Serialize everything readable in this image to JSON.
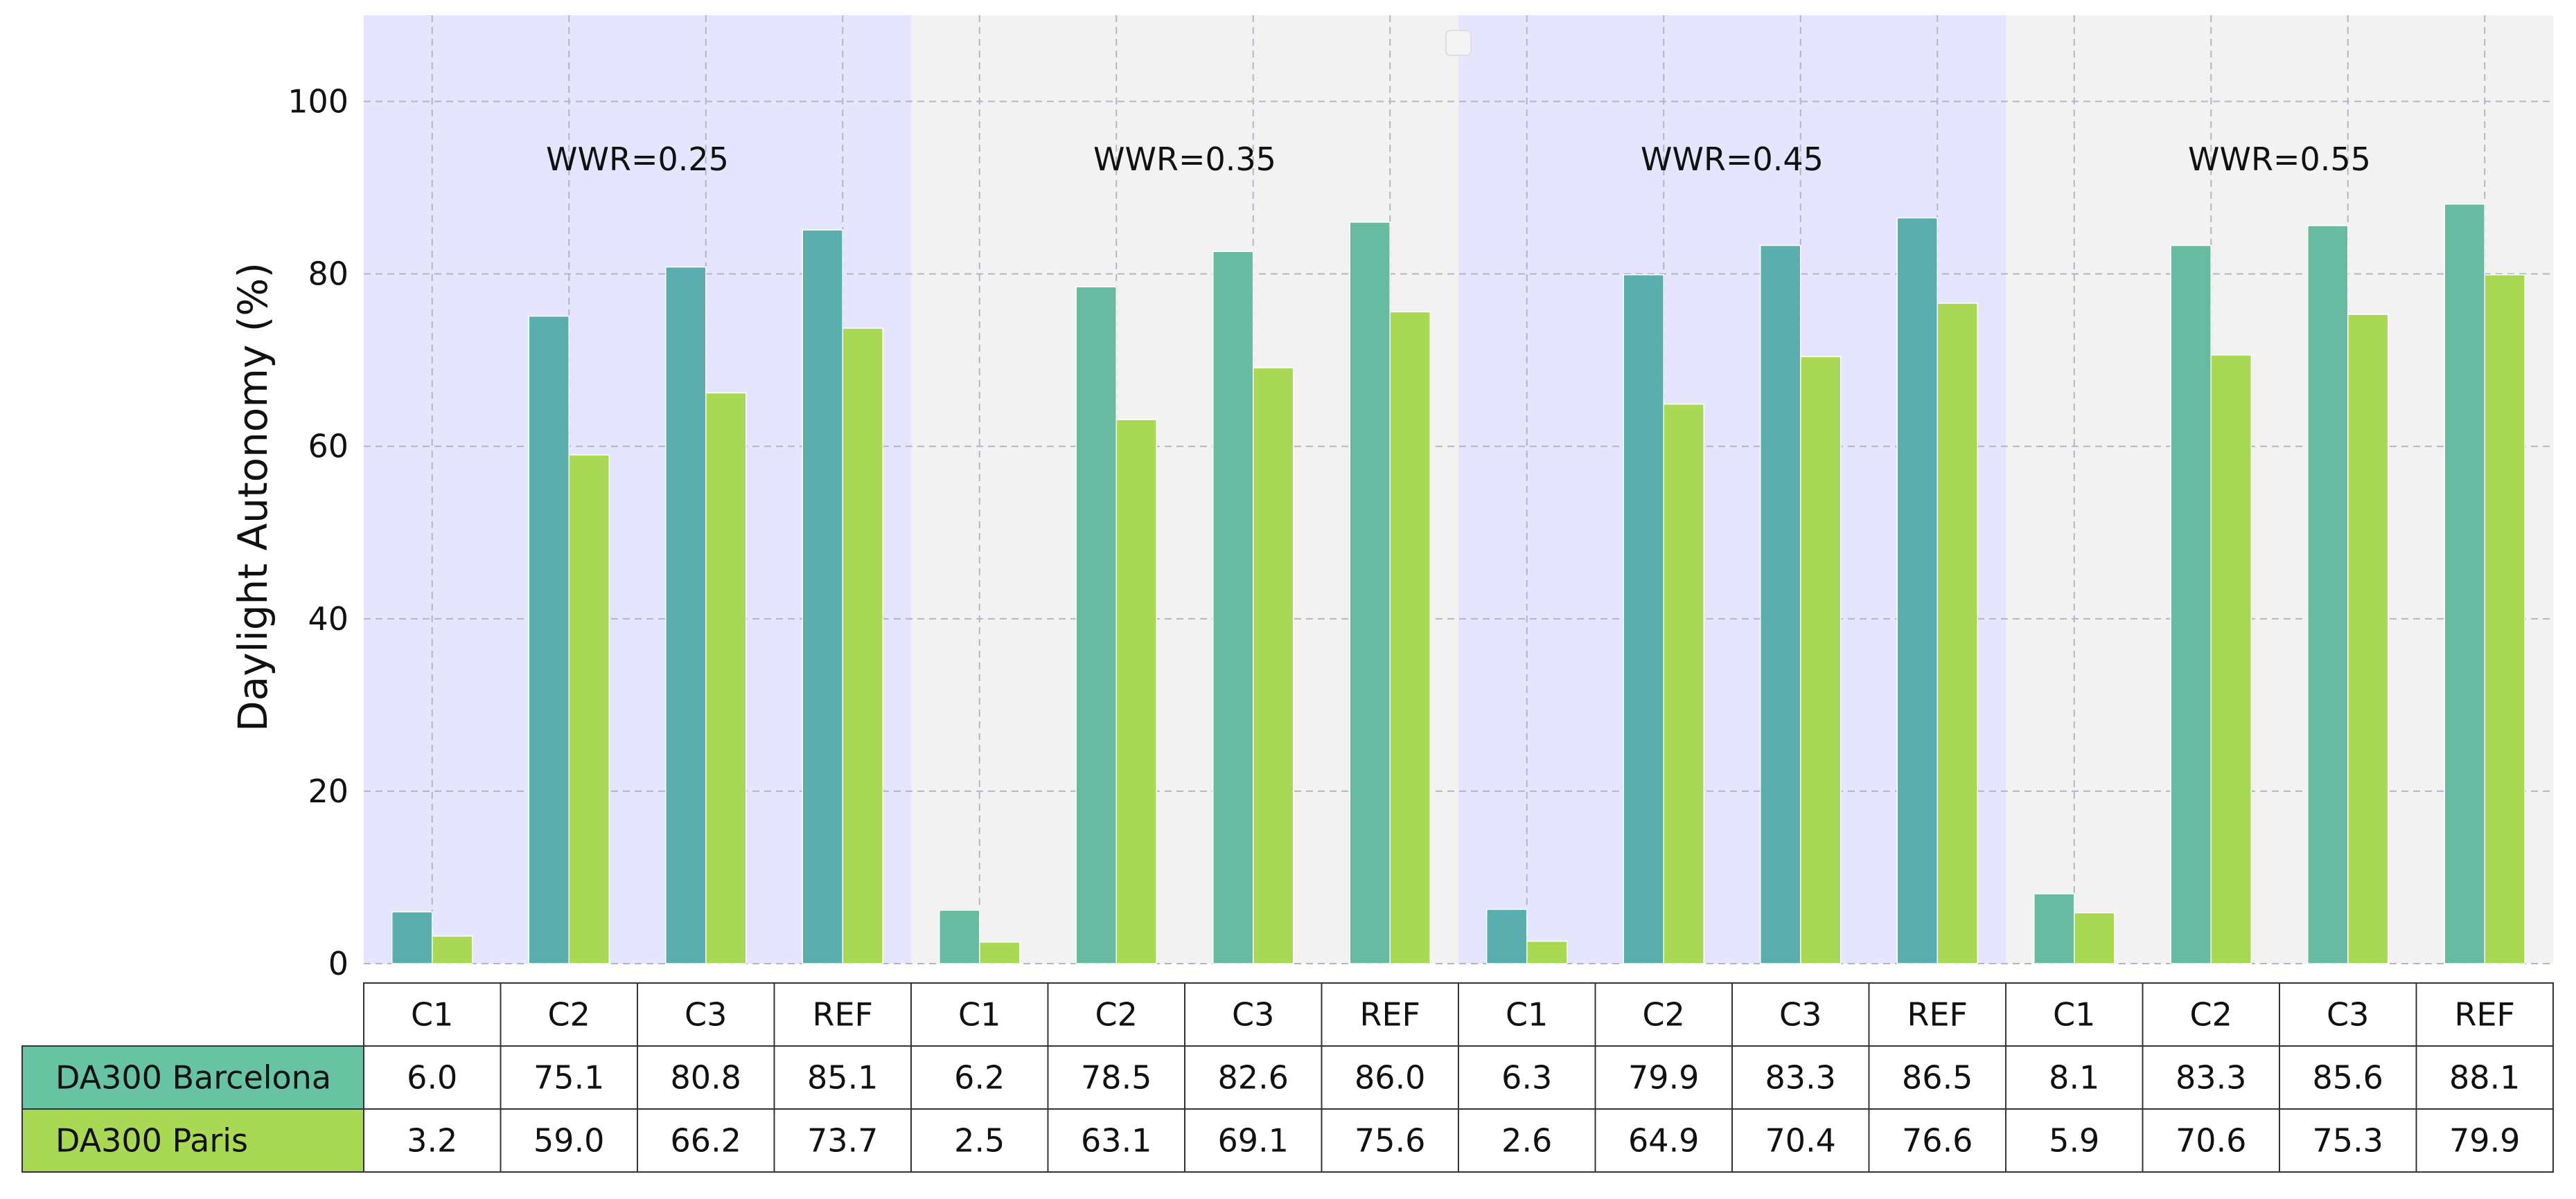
{
  "chart_data": {
    "type": "bar",
    "title": "",
    "xlabel": "",
    "ylabel": "Daylight Autonomy (%)",
    "ylim": [
      0,
      110
    ],
    "yticks": [
      0,
      20,
      40,
      60,
      80,
      100
    ],
    "grid": true,
    "groups": [
      {
        "label": "WWR=0.25",
        "shade": "#e5e5ff",
        "bar_color": "#5aaeae"
      },
      {
        "label": "WWR=0.35",
        "shade": "#f2f2f2",
        "bar_color": "#68bba0"
      },
      {
        "label": "WWR=0.45",
        "shade": "#e5e5ff",
        "bar_color": "#5aaeae"
      },
      {
        "label": "WWR=0.55",
        "shade": "#f2f2f2",
        "bar_color": "#68bba0"
      }
    ],
    "categories": [
      "C1",
      "C2",
      "C3",
      "REF",
      "C1",
      "C2",
      "C3",
      "REF",
      "C1",
      "C2",
      "C3",
      "REF",
      "C1",
      "C2",
      "C3",
      "REF"
    ],
    "series": [
      {
        "name": "DA300 Barcelona",
        "color": "#68c3a3",
        "values": [
          6.0,
          75.1,
          80.8,
          85.1,
          6.2,
          78.5,
          82.6,
          86.0,
          6.3,
          79.9,
          83.3,
          86.5,
          8.1,
          83.3,
          85.6,
          88.1
        ],
        "labels": [
          "6.0",
          "75.1",
          "80.8",
          "85.1",
          "6.2",
          "78.5",
          "82.6",
          "86.0",
          "6.3",
          "79.9",
          "83.3",
          "86.5",
          "8.1",
          "83.3",
          "85.6",
          "88.1"
        ]
      },
      {
        "name": "DA300 Paris",
        "color": "#a8d854",
        "values": [
          3.2,
          59.0,
          66.2,
          73.7,
          2.5,
          63.1,
          69.1,
          75.6,
          2.6,
          64.9,
          70.4,
          76.6,
          5.9,
          70.6,
          75.3,
          79.9
        ],
        "labels": [
          "3.2",
          "59.0",
          "66.2",
          "73.7",
          "2.5",
          "63.1",
          "69.1",
          "75.6",
          "2.6",
          "64.9",
          "70.4",
          "76.6",
          "5.9",
          "70.6",
          "75.3",
          "79.9"
        ]
      }
    ]
  }
}
